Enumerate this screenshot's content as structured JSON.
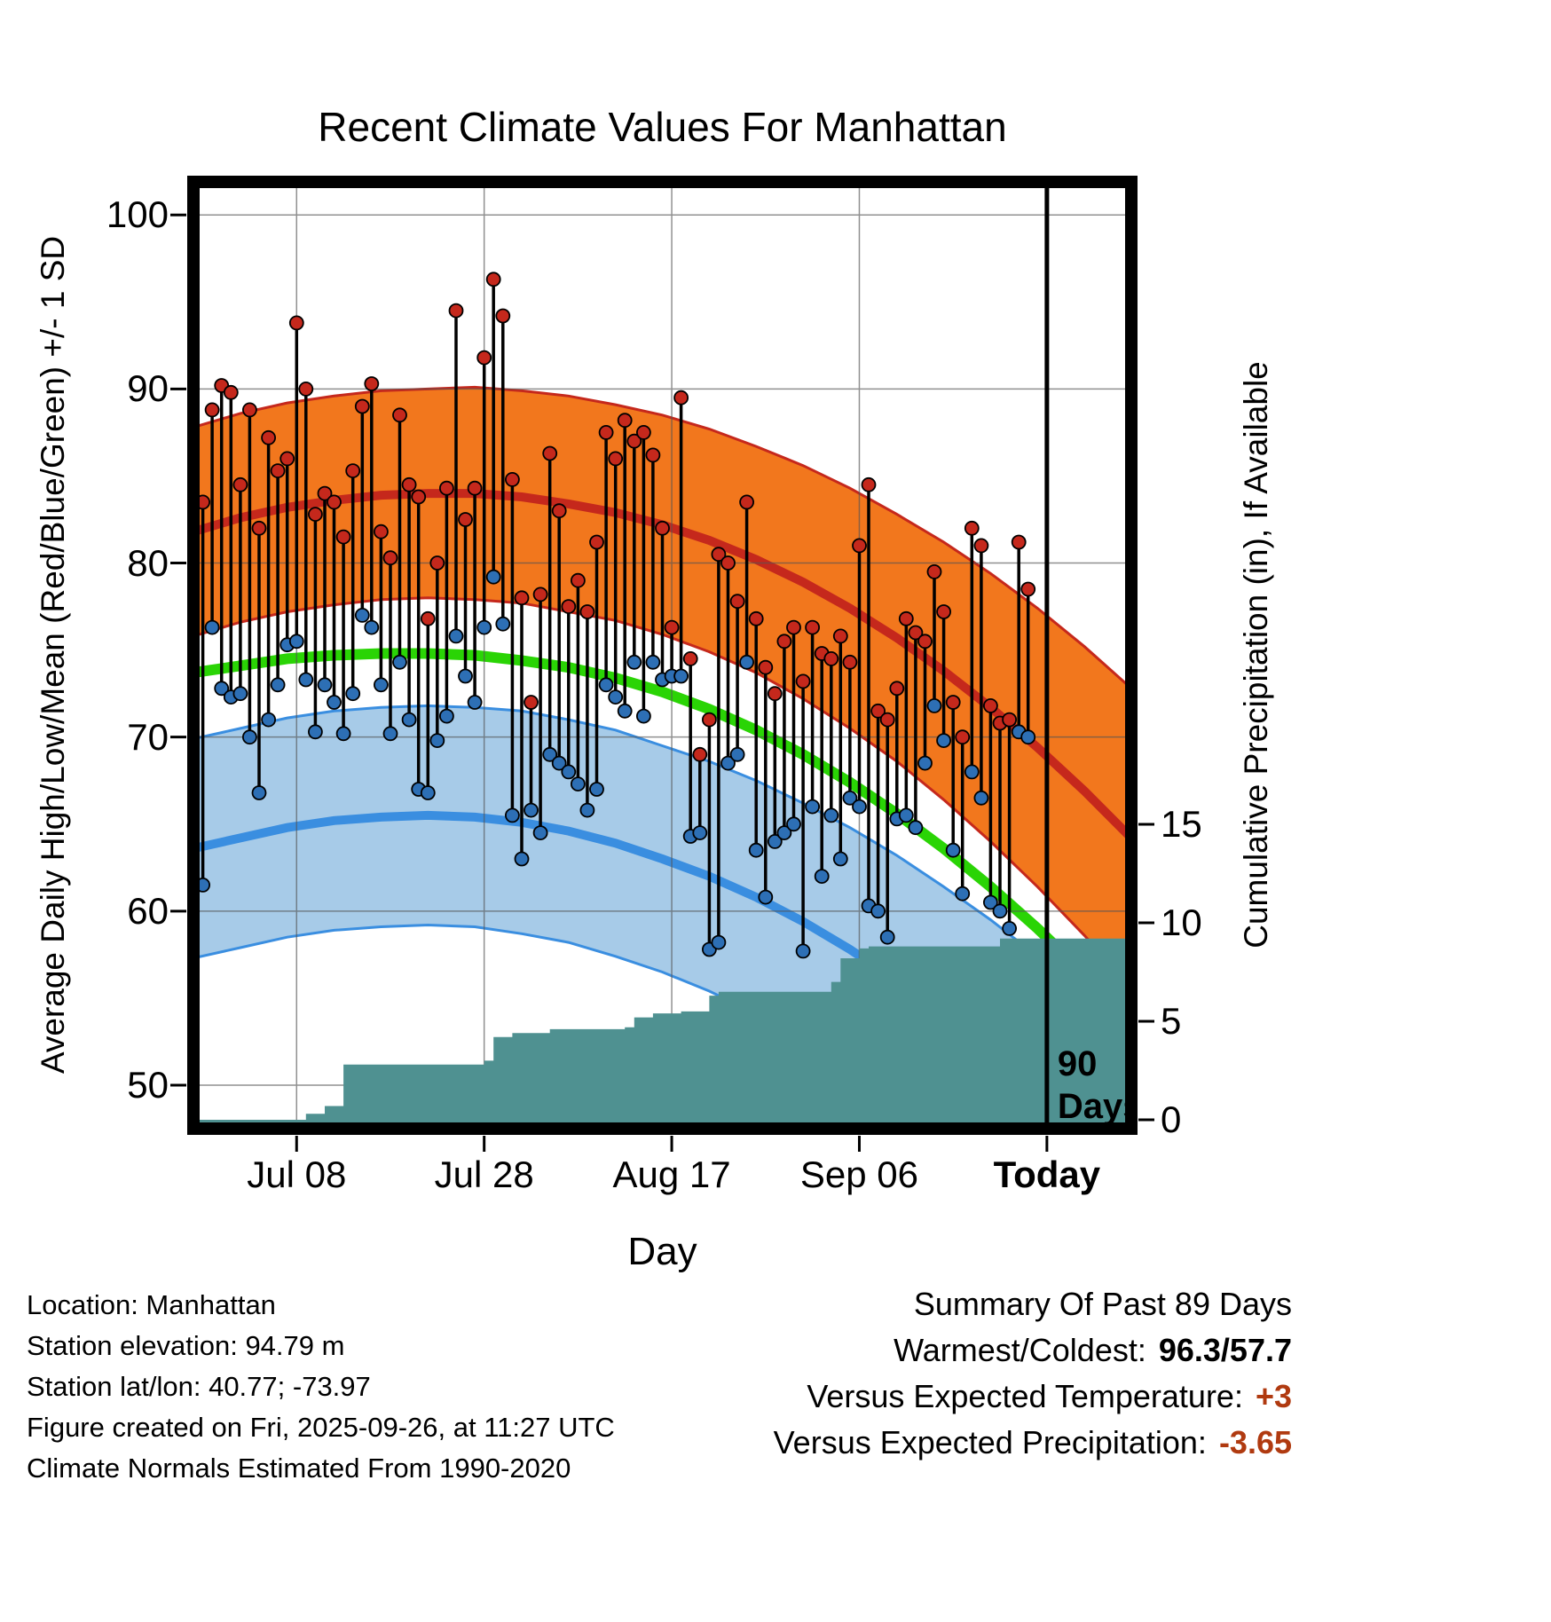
{
  "chart_data": {
    "type": "line",
    "title": "Recent Climate Values For Manhattan",
    "xlabel": "Day",
    "ylabel_left": "Average Daily High/Low/Mean (Red/Blue/Green) +/- 1 SD",
    "ylabel_right": "Cumulative Precipitation (in), If Available",
    "x_axis": {
      "range_days": [
        0,
        100
      ],
      "ticks": [
        {
          "day": 11,
          "label": "Jul 08",
          "bold": false
        },
        {
          "day": 31,
          "label": "Jul 28",
          "bold": false
        },
        {
          "day": 51,
          "label": "Aug 17",
          "bold": false
        },
        {
          "day": 71,
          "label": "Sep 06",
          "bold": false
        },
        {
          "day": 91,
          "label": "Today",
          "bold": true
        }
      ]
    },
    "y_temp": {
      "ticks": [
        50,
        60,
        70,
        80,
        90,
        100
      ],
      "range": [
        47.5,
        101.9
      ]
    },
    "y_precip": {
      "ticks": [
        0,
        5,
        10,
        15
      ]
    },
    "normals": {
      "days": [
        0,
        5,
        10,
        15,
        20,
        25,
        30,
        35,
        40,
        45,
        50,
        55,
        60,
        65,
        70,
        75,
        80,
        85,
        90,
        95,
        100
      ],
      "high_mean": [
        81.8,
        82.6,
        83.2,
        83.6,
        83.9,
        84.0,
        84.0,
        83.8,
        83.4,
        82.9,
        82.2,
        81.3,
        80.2,
        78.9,
        77.4,
        75.7,
        73.8,
        71.7,
        69.4,
        66.9,
        64.2
      ],
      "mean": [
        73.7,
        74.1,
        74.5,
        74.7,
        74.8,
        74.8,
        74.7,
        74.4,
        74.0,
        73.4,
        72.6,
        71.6,
        70.4,
        69.0,
        67.4,
        65.6,
        63.6,
        61.4,
        59.0,
        56.4,
        53.6
      ],
      "low_mean": [
        63.6,
        64.2,
        64.8,
        65.2,
        65.4,
        65.5,
        65.4,
        65.1,
        64.6,
        63.9,
        63.0,
        62.0,
        60.8,
        59.4,
        57.8,
        56.0,
        54.0,
        51.8,
        49.4,
        46.8,
        44.0
      ],
      "sd_high": [
        6.0,
        6.0,
        6.0,
        6.0,
        6.0,
        6.0,
        6.1,
        6.1,
        6.2,
        6.2,
        6.3,
        6.4,
        6.5,
        6.7,
        6.9,
        7.1,
        7.4,
        7.7,
        8.0,
        8.3,
        8.6
      ],
      "sd_low": [
        6.3,
        6.3,
        6.3,
        6.3,
        6.3,
        6.3,
        6.3,
        6.4,
        6.4,
        6.5,
        6.5,
        6.6,
        6.7,
        6.8,
        7.0,
        7.2,
        7.4,
        7.7,
        8.0,
        8.3,
        8.6
      ]
    },
    "observations": {
      "start_day": 1,
      "high": [
        83.5,
        88.8,
        90.2,
        89.8,
        84.5,
        88.8,
        82.0,
        87.2,
        85.3,
        86.0,
        93.8,
        90.0,
        82.8,
        84.0,
        83.5,
        81.5,
        85.3,
        89.0,
        90.3,
        81.8,
        80.3,
        88.5,
        84.5,
        83.8,
        76.8,
        80.0,
        84.3,
        94.5,
        82.5,
        84.3,
        91.8,
        96.3,
        94.2,
        84.8,
        78.0,
        72.0,
        78.2,
        86.3,
        83.0,
        77.5,
        79.0,
        77.2,
        81.2,
        87.5,
        86.0,
        88.2,
        87.0,
        87.5,
        86.2,
        82.0,
        76.3,
        89.5,
        74.5,
        69.0,
        71.0,
        80.5,
        80.0,
        77.8,
        83.5,
        76.8,
        74.0,
        72.5,
        75.5,
        76.3,
        73.2,
        76.3,
        74.8,
        74.5,
        75.8,
        74.3,
        81.0,
        84.5,
        71.5,
        71.0,
        72.8,
        76.8,
        76.0,
        75.5,
        79.5,
        77.2,
        72.0,
        70.0,
        82.0,
        81.0,
        71.8,
        70.8,
        71.0,
        81.2,
        78.5
      ],
      "low": [
        61.5,
        76.3,
        72.8,
        72.3,
        72.5,
        70.0,
        66.8,
        71.0,
        73.0,
        75.3,
        75.5,
        73.3,
        70.3,
        73.0,
        72.0,
        70.2,
        72.5,
        77.0,
        76.3,
        73.0,
        70.2,
        74.3,
        71.0,
        67.0,
        66.8,
        69.8,
        71.2,
        75.8,
        73.5,
        72.0,
        76.3,
        79.2,
        76.5,
        65.5,
        63.0,
        65.8,
        64.5,
        69.0,
        68.5,
        68.0,
        67.3,
        65.8,
        67.0,
        73.0,
        72.3,
        71.5,
        74.3,
        71.2,
        74.3,
        73.3,
        73.5,
        73.5,
        64.3,
        64.5,
        57.8,
        58.2,
        68.5,
        69.0,
        74.3,
        63.5,
        60.8,
        64.0,
        64.5,
        65.0,
        57.7,
        66.0,
        62.0,
        65.5,
        63.0,
        66.5,
        66.0,
        60.3,
        60.0,
        58.5,
        65.3,
        65.5,
        64.8,
        68.5,
        71.8,
        69.8,
        63.5,
        61.0,
        68.0,
        66.5,
        60.5,
        60.0,
        59.0,
        70.3,
        70.0
      ]
    },
    "precip_cumulative_steps": [
      [
        0,
        0
      ],
      [
        12,
        0.3
      ],
      [
        14,
        0.7
      ],
      [
        16,
        2.8
      ],
      [
        31,
        3.0
      ],
      [
        32,
        4.2
      ],
      [
        34,
        4.4
      ],
      [
        38,
        4.6
      ],
      [
        46,
        4.7
      ],
      [
        47,
        5.2
      ],
      [
        49,
        5.4
      ],
      [
        52,
        5.5
      ],
      [
        55,
        6.3
      ],
      [
        56,
        6.5
      ],
      [
        68,
        7.0
      ],
      [
        69,
        8.2
      ],
      [
        71,
        8.7
      ],
      [
        72,
        8.8
      ],
      [
        86,
        9.2
      ],
      [
        100,
        9.2
      ]
    ],
    "marker": {
      "day": 91,
      "lines": [
        "90",
        "Days"
      ]
    }
  },
  "footer": {
    "lines": [
      "Location: Manhattan",
      "Station elevation: 94.79 m",
      "Station lat/lon: 40.77; -73.97",
      "Figure created on Fri, 2025-09-26, at 11:27 UTC",
      "Climate Normals Estimated From 1990-2020"
    ]
  },
  "summary": {
    "title": "Summary Of Past 89 Days",
    "rows": [
      {
        "label": "Warmest/Coldest:",
        "value": "96.3/57.7",
        "color": "#000000"
      },
      {
        "label": "Versus Expected Temperature:",
        "value": "+3",
        "color": "#b03a10"
      },
      {
        "label": "Versus Expected Precipitation:",
        "value": "-3.65",
        "color": "#b03a10"
      }
    ]
  },
  "colors": {
    "high_band": "#f2771d",
    "high_line": "#c5281c",
    "low_band": "#a7cbe8",
    "low_line": "#3a8ee0",
    "mean_line": "#2ad405",
    "precip_fill": "#4f9191",
    "dot_high": "#c5281c",
    "dot_low": "#2d6fb5",
    "grid": "#555555",
    "frame": "#000000"
  }
}
